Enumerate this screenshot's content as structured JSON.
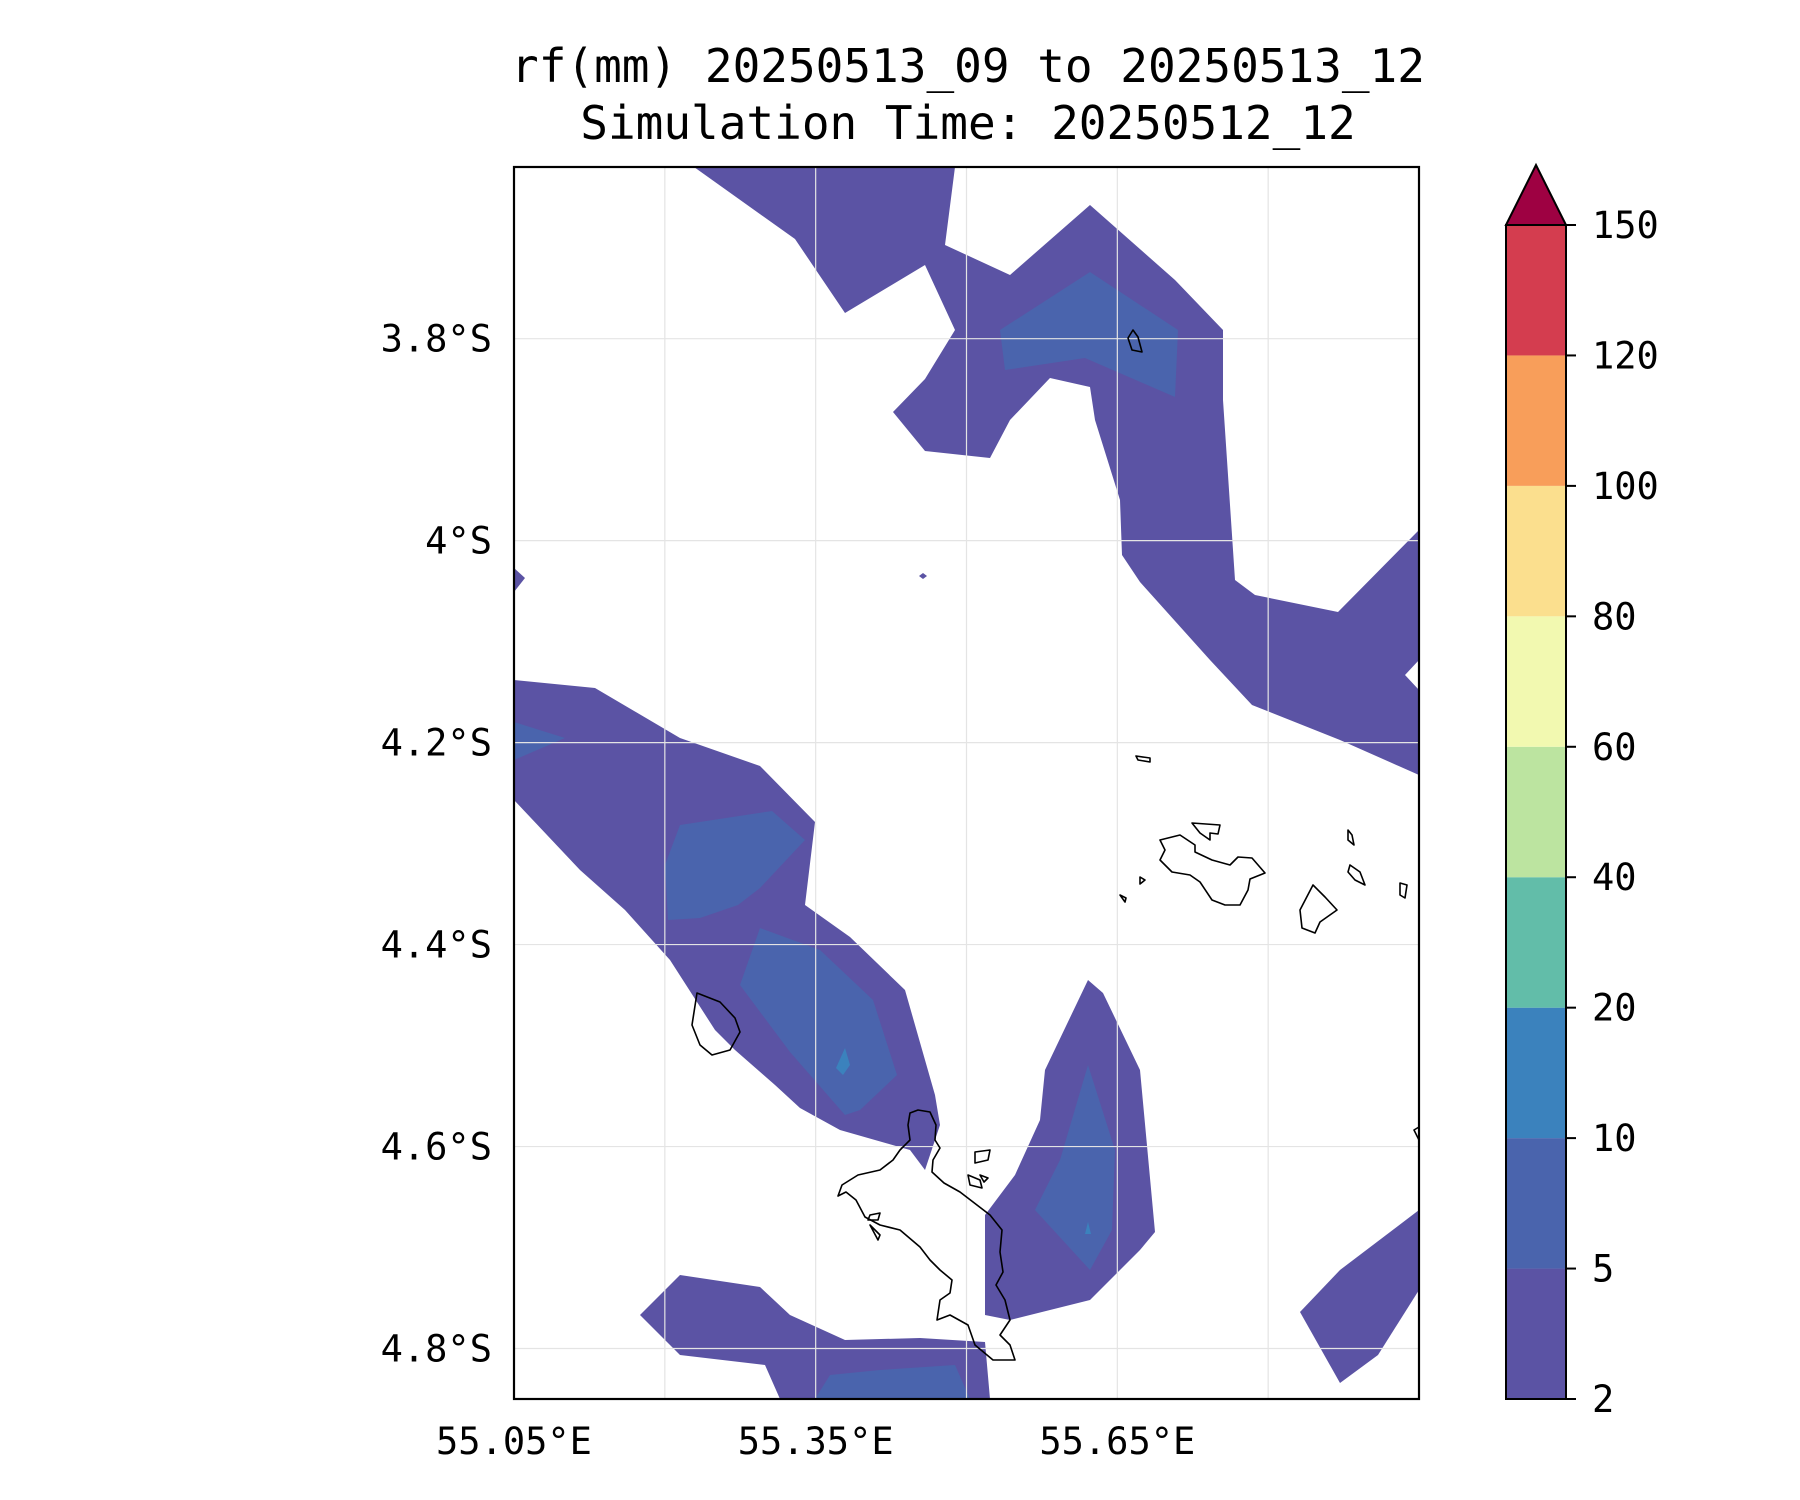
{
  "title": {
    "line1": "rf(mm) 20250513_09 to 20250513_12",
    "line2": "Simulation Time: 20250512_12"
  },
  "map": {
    "lon_range": [
      55.05,
      55.95
    ],
    "lat_range": [
      -4.85,
      -3.63
    ],
    "x_ticks": [
      {
        "value": 55.05,
        "label": "55.05°E"
      },
      {
        "value": 55.35,
        "label": "55.35°E"
      },
      {
        "value": 55.65,
        "label": "55.65°E"
      }
    ],
    "x_grid_only": [
      55.2,
      55.5,
      55.8
    ],
    "y_ticks": [
      {
        "value": -3.8,
        "label": "3.8°S"
      },
      {
        "value": -4.0,
        "label": "4°S"
      },
      {
        "value": -4.2,
        "label": "4.2°S"
      },
      {
        "value": -4.4,
        "label": "4.4°S"
      },
      {
        "value": -4.6,
        "label": "4.6°S"
      },
      {
        "value": -4.8,
        "label": "4.8°S"
      }
    ],
    "grid": true
  },
  "colorbar": {
    "levels": [
      2,
      5,
      10,
      20,
      40,
      60,
      80,
      100,
      120,
      150
    ],
    "colors": [
      "#5b53a4",
      "#4a64ad",
      "#3b82bd",
      "#62bda9",
      "#bce4a0",
      "#f2f9b0",
      "#fbdf8e",
      "#f89e5a",
      "#d43d4f"
    ],
    "extend_color": "#9e0142",
    "extend": "max"
  },
  "colors": {
    "coastline": "#000000",
    "grid": "#e4e4e4"
  }
}
